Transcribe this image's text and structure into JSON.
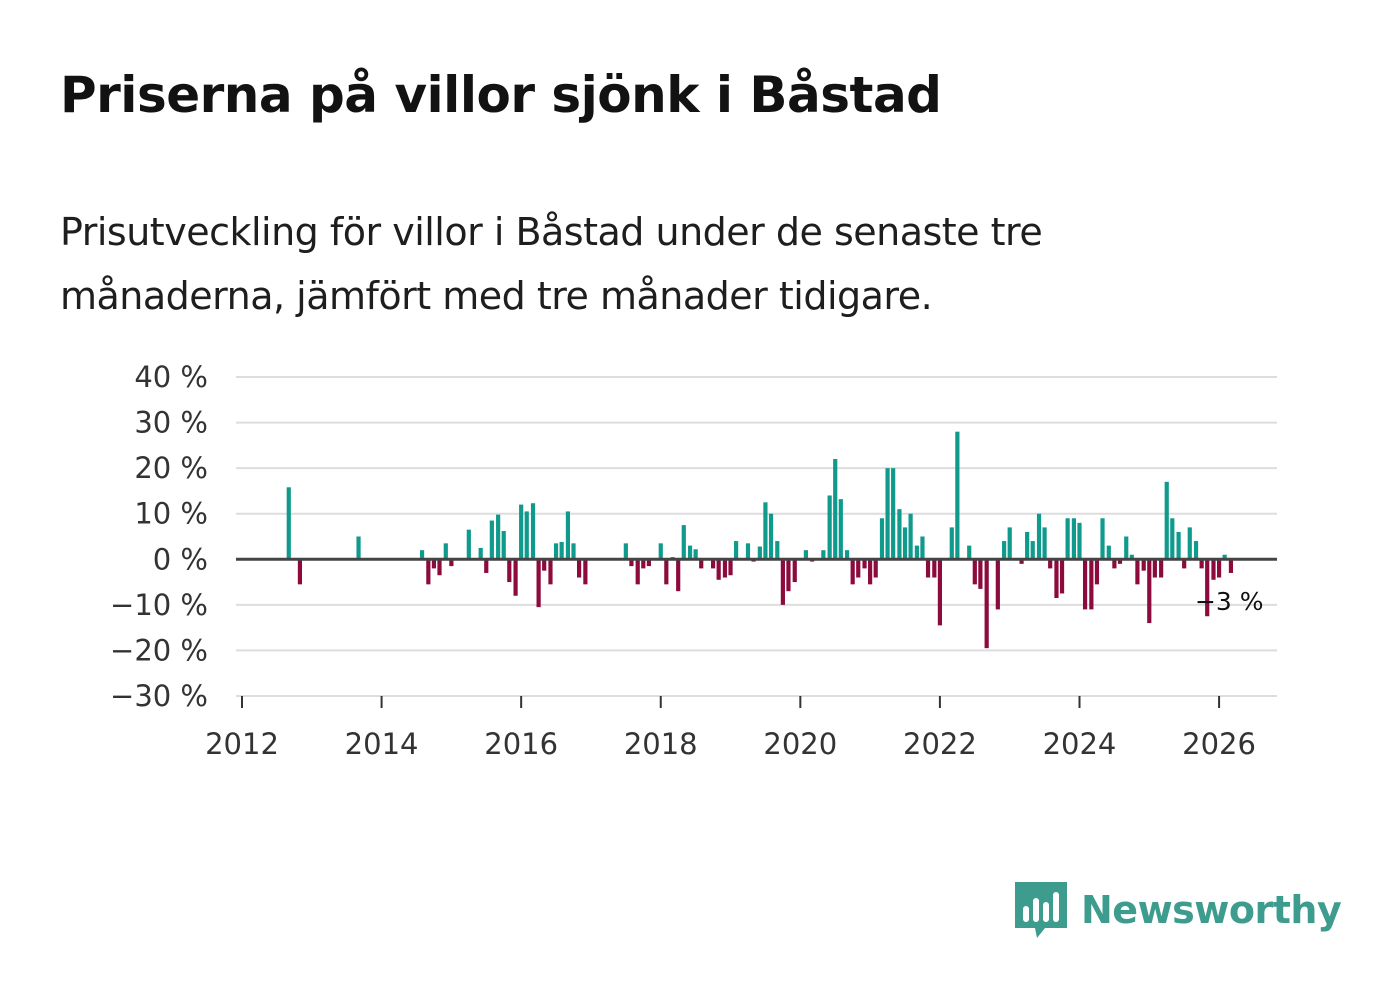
{
  "title": "Priserna på villor sjönk i Båstad",
  "subtitle": "Prisutveckling för villor i Båstad under de senaste tre månaderna, jämfört med tre månader tidigare.",
  "brand": {
    "name": "Newsworthy",
    "icon": "bar-chart-speech-bubble-icon",
    "color": "#3e9c8e"
  },
  "colors": {
    "positive": "#0f9a8c",
    "negative": "#8c0a3c",
    "grid": "#dddddd",
    "zero": "#444444"
  },
  "chart_data": {
    "type": "bar",
    "title": "",
    "xlabel": "",
    "ylabel": "",
    "ylim": [
      -30,
      40
    ],
    "xlim": [
      2012.0,
      2026.83
    ],
    "y_ticks": [
      {
        "value": 40,
        "label": "40 %"
      },
      {
        "value": 30,
        "label": "30 %"
      },
      {
        "value": 20,
        "label": "20 %"
      },
      {
        "value": 10,
        "label": "10 %"
      },
      {
        "value": 0,
        "label": "0 %"
      },
      {
        "value": -10,
        "label": "−10 %"
      },
      {
        "value": -20,
        "label": "−20 %"
      },
      {
        "value": -30,
        "label": "−30 %"
      }
    ],
    "x_ticks": [
      {
        "value": 2012,
        "label": "2012"
      },
      {
        "value": 2014,
        "label": "2014"
      },
      {
        "value": 2016,
        "label": "2016"
      },
      {
        "value": 2018,
        "label": "2018"
      },
      {
        "value": 2020,
        "label": "2020"
      },
      {
        "value": 2022,
        "label": "2022"
      },
      {
        "value": 2024,
        "label": "2024"
      },
      {
        "value": 2026,
        "label": "2026"
      }
    ],
    "grid": true,
    "last_value_label": "−3 %",
    "series": [
      {
        "name": "Prisutveckling",
        "points": [
          {
            "x": 2012.67,
            "y": 15.8
          },
          {
            "x": 2012.83,
            "y": -5.5
          },
          {
            "x": 2013.67,
            "y": 5
          },
          {
            "x": 2014.58,
            "y": 2
          },
          {
            "x": 2014.67,
            "y": -5.5
          },
          {
            "x": 2014.75,
            "y": -2
          },
          {
            "x": 2014.83,
            "y": -3.5
          },
          {
            "x": 2014.92,
            "y": 3.5
          },
          {
            "x": 2015.0,
            "y": -1.5
          },
          {
            "x": 2015.25,
            "y": 6.5
          },
          {
            "x": 2015.42,
            "y": 2.5
          },
          {
            "x": 2015.5,
            "y": -3
          },
          {
            "x": 2015.58,
            "y": 8.5
          },
          {
            "x": 2015.67,
            "y": 9.8
          },
          {
            "x": 2015.75,
            "y": 6.2
          },
          {
            "x": 2015.83,
            "y": -5
          },
          {
            "x": 2015.92,
            "y": -8
          },
          {
            "x": 2016.0,
            "y": 12
          },
          {
            "x": 2016.08,
            "y": 10.5
          },
          {
            "x": 2016.17,
            "y": 12.3
          },
          {
            "x": 2016.25,
            "y": -10.5
          },
          {
            "x": 2016.33,
            "y": -2.5
          },
          {
            "x": 2016.42,
            "y": -5.5
          },
          {
            "x": 2016.5,
            "y": 3.5
          },
          {
            "x": 2016.58,
            "y": 3.8
          },
          {
            "x": 2016.67,
            "y": 10.5
          },
          {
            "x": 2016.75,
            "y": 3.5
          },
          {
            "x": 2016.83,
            "y": -4
          },
          {
            "x": 2016.92,
            "y": -5.5
          },
          {
            "x": 2017.5,
            "y": 3.5
          },
          {
            "x": 2017.58,
            "y": -1.5
          },
          {
            "x": 2017.67,
            "y": -5.5
          },
          {
            "x": 2017.75,
            "y": -2
          },
          {
            "x": 2017.83,
            "y": -1.5
          },
          {
            "x": 2018.0,
            "y": 3.5
          },
          {
            "x": 2018.08,
            "y": -5.5
          },
          {
            "x": 2018.17,
            "y": 0.5
          },
          {
            "x": 2018.25,
            "y": -7
          },
          {
            "x": 2018.33,
            "y": 7.5
          },
          {
            "x": 2018.42,
            "y": 3
          },
          {
            "x": 2018.5,
            "y": 2.2
          },
          {
            "x": 2018.58,
            "y": -2
          },
          {
            "x": 2018.75,
            "y": -2
          },
          {
            "x": 2018.83,
            "y": -4.5
          },
          {
            "x": 2018.92,
            "y": -4
          },
          {
            "x": 2019.0,
            "y": -3.5
          },
          {
            "x": 2019.08,
            "y": 4
          },
          {
            "x": 2019.25,
            "y": 3.5
          },
          {
            "x": 2019.33,
            "y": -0.5
          },
          {
            "x": 2019.42,
            "y": 2.8
          },
          {
            "x": 2019.5,
            "y": 12.5
          },
          {
            "x": 2019.58,
            "y": 10
          },
          {
            "x": 2019.67,
            "y": 4
          },
          {
            "x": 2019.75,
            "y": -10
          },
          {
            "x": 2019.83,
            "y": -7
          },
          {
            "x": 2019.92,
            "y": -5
          },
          {
            "x": 2020.08,
            "y": 2
          },
          {
            "x": 2020.17,
            "y": -0.5
          },
          {
            "x": 2020.33,
            "y": 2
          },
          {
            "x": 2020.42,
            "y": 14
          },
          {
            "x": 2020.5,
            "y": 22
          },
          {
            "x": 2020.58,
            "y": 13.2
          },
          {
            "x": 2020.67,
            "y": 2
          },
          {
            "x": 2020.75,
            "y": -5.5
          },
          {
            "x": 2020.83,
            "y": -4
          },
          {
            "x": 2020.92,
            "y": -2
          },
          {
            "x": 2021.0,
            "y": -5.5
          },
          {
            "x": 2021.08,
            "y": -4
          },
          {
            "x": 2021.17,
            "y": 9
          },
          {
            "x": 2021.25,
            "y": 20
          },
          {
            "x": 2021.33,
            "y": 20
          },
          {
            "x": 2021.42,
            "y": 11
          },
          {
            "x": 2021.5,
            "y": 7
          },
          {
            "x": 2021.58,
            "y": 10
          },
          {
            "x": 2021.67,
            "y": 3
          },
          {
            "x": 2021.75,
            "y": 5
          },
          {
            "x": 2021.83,
            "y": -4
          },
          {
            "x": 2021.92,
            "y": -4
          },
          {
            "x": 2022.0,
            "y": -14.5
          },
          {
            "x": 2022.17,
            "y": 7
          },
          {
            "x": 2022.25,
            "y": 28
          },
          {
            "x": 2022.42,
            "y": 3
          },
          {
            "x": 2022.5,
            "y": -5.5
          },
          {
            "x": 2022.58,
            "y": -6.5
          },
          {
            "x": 2022.67,
            "y": -19.5
          },
          {
            "x": 2022.83,
            "y": -11
          },
          {
            "x": 2022.92,
            "y": 4
          },
          {
            "x": 2023.0,
            "y": 7
          },
          {
            "x": 2023.17,
            "y": -1
          },
          {
            "x": 2023.25,
            "y": 6
          },
          {
            "x": 2023.33,
            "y": 4
          },
          {
            "x": 2023.42,
            "y": 10
          },
          {
            "x": 2023.5,
            "y": 7
          },
          {
            "x": 2023.58,
            "y": -2
          },
          {
            "x": 2023.67,
            "y": -8.5
          },
          {
            "x": 2023.75,
            "y": -7.5
          },
          {
            "x": 2023.83,
            "y": 9
          },
          {
            "x": 2023.92,
            "y": 9
          },
          {
            "x": 2024.0,
            "y": 8
          },
          {
            "x": 2024.08,
            "y": -11
          },
          {
            "x": 2024.17,
            "y": -11
          },
          {
            "x": 2024.25,
            "y": -5.5
          },
          {
            "x": 2024.33,
            "y": 9
          },
          {
            "x": 2024.42,
            "y": 3
          },
          {
            "x": 2024.5,
            "y": -2
          },
          {
            "x": 2024.58,
            "y": -1
          },
          {
            "x": 2024.67,
            "y": 5
          },
          {
            "x": 2024.75,
            "y": 1
          },
          {
            "x": 2024.83,
            "y": -5.5
          },
          {
            "x": 2024.92,
            "y": -2.5
          },
          {
            "x": 2025.0,
            "y": -14
          },
          {
            "x": 2025.08,
            "y": -4
          },
          {
            "x": 2025.17,
            "y": -4
          },
          {
            "x": 2025.25,
            "y": 17
          },
          {
            "x": 2025.33,
            "y": 9
          },
          {
            "x": 2025.42,
            "y": 6
          },
          {
            "x": 2025.5,
            "y": -2
          },
          {
            "x": 2025.58,
            "y": 7
          },
          {
            "x": 2025.67,
            "y": 4
          },
          {
            "x": 2025.75,
            "y": -2
          },
          {
            "x": 2025.83,
            "y": -12.5
          },
          {
            "x": 2025.92,
            "y": -4.5
          },
          {
            "x": 2026.0,
            "y": -4
          },
          {
            "x": 2026.08,
            "y": 1
          },
          {
            "x": 2026.17,
            "y": -3
          }
        ]
      }
    ]
  }
}
